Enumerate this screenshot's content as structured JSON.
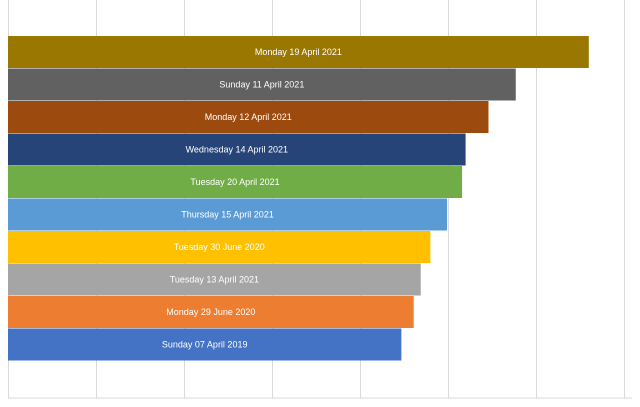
{
  "chart_data": {
    "type": "bar",
    "orientation": "horizontal",
    "categories": [
      "Monday 19 April 2021",
      "Sunday 11 April 2021",
      "Monday 12 April 2021",
      "Wednesday 14 April 2021",
      "Tuesday 20 April 2021",
      "Thursday 15 April 2021",
      "Tuesday 30 June 2020",
      "Tuesday 13 April 2021",
      "Monday 29 June 2020",
      "Sunday 07 April 2019"
    ],
    "values": [
      6.6,
      5.77,
      5.46,
      5.2,
      5.16,
      4.99,
      4.8,
      4.69,
      4.61,
      4.47
    ],
    "colors": [
      "#9A7700",
      "#616161",
      "#9C4A0E",
      "#264478",
      "#70AD47",
      "#5B9BD5",
      "#FFC000",
      "#A5A5A5",
      "#ED7D31",
      "#4472C4"
    ],
    "xlim": [
      0,
      7
    ],
    "grid": true,
    "legend": "none",
    "label_position": "inside-center"
  }
}
